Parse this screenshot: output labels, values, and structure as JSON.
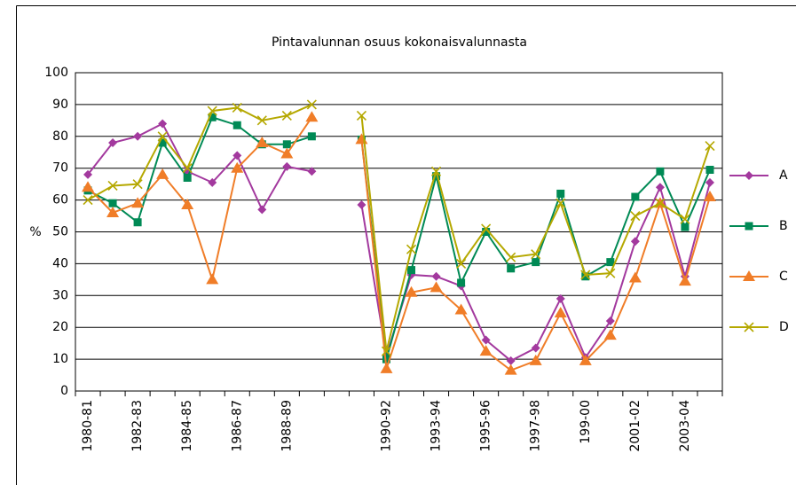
{
  "chart_data": {
    "type": "line",
    "title": "Pintavalunnan osuus kokonaisvalunnasta",
    "y_label": "%",
    "categories": [
      "1980-81",
      null,
      "1982-83",
      null,
      "1984-85",
      null,
      "1986-87",
      null,
      "1988-89",
      null,
      null,
      null,
      "1990-92",
      null,
      "1993-94",
      null,
      "1995-96",
      null,
      "1997-98",
      null,
      "199-00",
      null,
      "2001-02",
      null,
      "2003-04",
      null
    ],
    "series": [
      {
        "name": "A",
        "color": "#a3399e",
        "marker": "diamond",
        "values": [
          68,
          78,
          80,
          84,
          69,
          65.5,
          74,
          57,
          70.5,
          69,
          null,
          58.5,
          11,
          36.5,
          36,
          33,
          16,
          9.5,
          13.5,
          29,
          10.5,
          22,
          47,
          64,
          36,
          65.5
        ]
      },
      {
        "name": "B",
        "color": "#008a55",
        "marker": "square",
        "values": [
          63,
          59,
          53,
          78,
          67,
          86,
          83.5,
          77.5,
          77.5,
          80,
          null,
          79,
          10,
          38,
          67.5,
          34,
          50,
          38.5,
          40.5,
          62,
          36,
          40.5,
          61,
          69,
          51.5,
          69.5
        ]
      },
      {
        "name": "C",
        "color": "#f07d28",
        "marker": "triangle",
        "values": [
          64,
          56,
          59,
          68,
          58.5,
          35,
          70,
          78,
          74.5,
          86,
          null,
          79,
          7,
          31,
          32.5,
          25.5,
          12.5,
          6.5,
          9.5,
          24.5,
          9.5,
          17.5,
          35.5,
          59,
          34.5,
          61
        ]
      },
      {
        "name": "D",
        "color": "#b5a800",
        "marker": "x",
        "values": [
          60,
          64.5,
          65,
          80,
          70,
          88,
          89,
          85,
          86.5,
          90,
          null,
          86.5,
          12.5,
          44.5,
          69,
          40,
          51,
          42,
          43,
          59,
          36.5,
          37,
          55,
          59,
          54,
          77
        ]
      }
    ],
    "ylim": [
      0,
      100
    ],
    "yticks": [
      0,
      10,
      20,
      30,
      40,
      50,
      60,
      70,
      80,
      90,
      100
    ],
    "grid": true,
    "legend": "right"
  }
}
